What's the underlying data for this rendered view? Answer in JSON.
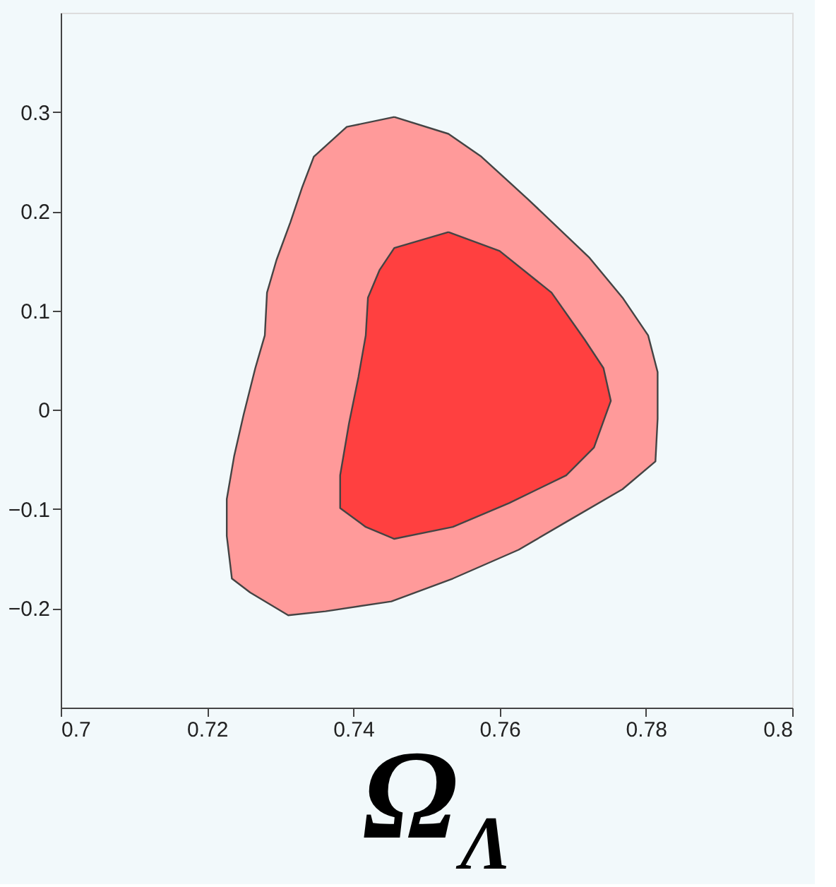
{
  "chart_data": {
    "type": "area",
    "xlabel": "Ω$_{Λ}$",
    "xlim": [
      0.7,
      0.8
    ],
    "ylim": [
      -0.3,
      0.4
    ],
    "xticks": [
      0.7,
      0.72,
      0.74,
      0.76,
      0.78,
      0.8
    ],
    "yticks": [
      -0.2,
      -0.1,
      0,
      0.1,
      0.2,
      0.3
    ],
    "grid": false,
    "series": [
      {
        "color": "#ff9a9a",
        "x": [
          0.7456,
          0.7391,
          0.7346,
          0.733,
          0.7314,
          0.7295,
          0.7282,
          0.7279,
          0.7266,
          0.725,
          0.7237,
          0.7227,
          0.7227,
          0.7234,
          0.7259,
          0.7311,
          0.7362,
          0.7452,
          0.7536,
          0.7626,
          0.7691,
          0.7768,
          0.7813,
          0.7816,
          0.7816,
          0.7803,
          0.7768,
          0.7723,
          0.7639,
          0.7575,
          0.753
        ],
        "values": [
          0.295,
          0.285,
          0.255,
          0.224,
          0.189,
          0.151,
          0.118,
          0.075,
          0.042,
          -0.005,
          -0.047,
          -0.09,
          -0.127,
          -0.17,
          -0.184,
          -0.207,
          -0.203,
          -0.193,
          -0.17,
          -0.141,
          -0.113,
          -0.08,
          -0.052,
          -0.009,
          0.038,
          0.075,
          0.113,
          0.153,
          0.212,
          0.255,
          0.278
        ]
      },
      {
        "color": "#ff4040",
        "x": [
          0.753,
          0.7456,
          0.7436,
          0.742,
          0.7417,
          0.7407,
          0.7394,
          0.7382,
          0.7382,
          0.7417,
          0.7456,
          0.7536,
          0.7613,
          0.7691,
          0.7729,
          0.7752,
          0.7742,
          0.7716,
          0.7671,
          0.76
        ],
        "values": [
          0.179,
          0.163,
          0.141,
          0.113,
          0.075,
          0.033,
          -0.014,
          -0.066,
          -0.099,
          -0.118,
          -0.13,
          -0.118,
          -0.094,
          -0.066,
          -0.038,
          0.009,
          0.042,
          0.071,
          0.118,
          0.16
        ]
      }
    ]
  }
}
